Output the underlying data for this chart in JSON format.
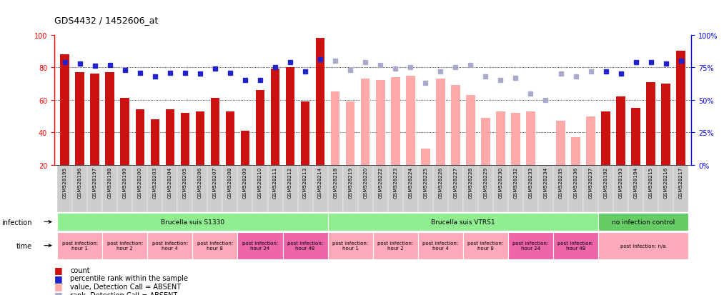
{
  "title": "GDS4432 / 1452606_at",
  "samples": [
    "GSM528195",
    "GSM528196",
    "GSM528197",
    "GSM528198",
    "GSM528199",
    "GSM528200",
    "GSM528203",
    "GSM528204",
    "GSM528205",
    "GSM528206",
    "GSM528207",
    "GSM528208",
    "GSM528209",
    "GSM528210",
    "GSM528211",
    "GSM528212",
    "GSM528213",
    "GSM528214",
    "GSM528218",
    "GSM528219",
    "GSM528220",
    "GSM528222",
    "GSM528223",
    "GSM528224",
    "GSM528225",
    "GSM528226",
    "GSM528227",
    "GSM528228",
    "GSM528229",
    "GSM528230",
    "GSM528232",
    "GSM528233",
    "GSM528234",
    "GSM528235",
    "GSM528236",
    "GSM528237",
    "GSM528192",
    "GSM528193",
    "GSM528194",
    "GSM528215",
    "GSM528216",
    "GSM528217"
  ],
  "bar_values": [
    88,
    77,
    76,
    77,
    61,
    54,
    48,
    54,
    52,
    53,
    61,
    53,
    41,
    66,
    79,
    80,
    59,
    98,
    65,
    59,
    73,
    72,
    74,
    75,
    30,
    73,
    69,
    63,
    49,
    53,
    52,
    53,
    20,
    47,
    37,
    50,
    53,
    62,
    55,
    71,
    70,
    90
  ],
  "bar_absent": [
    false,
    false,
    false,
    false,
    false,
    false,
    false,
    false,
    false,
    false,
    false,
    false,
    false,
    false,
    false,
    false,
    false,
    false,
    true,
    true,
    true,
    true,
    true,
    true,
    true,
    true,
    true,
    true,
    true,
    true,
    true,
    true,
    true,
    true,
    true,
    true,
    false,
    false,
    false,
    false,
    false,
    false
  ],
  "rank_values": [
    79,
    78,
    76,
    77,
    73,
    71,
    68,
    71,
    71,
    70,
    74,
    71,
    65,
    65,
    75,
    79,
    72,
    81,
    80,
    73,
    79,
    77,
    74,
    75,
    63,
    72,
    75,
    77,
    68,
    65,
    67,
    55,
    50,
    70,
    68,
    72,
    72,
    70,
    79,
    79,
    78,
    80
  ],
  "rank_absent": [
    false,
    false,
    false,
    false,
    false,
    false,
    false,
    false,
    false,
    false,
    false,
    false,
    false,
    false,
    false,
    false,
    false,
    false,
    true,
    true,
    true,
    true,
    true,
    true,
    true,
    true,
    true,
    true,
    true,
    true,
    true,
    true,
    true,
    true,
    true,
    true,
    false,
    false,
    false,
    false,
    false,
    false
  ],
  "infection_groups": [
    {
      "label": "Brucella suis S1330",
      "start": 0,
      "end": 18,
      "color": "#90ee90"
    },
    {
      "label": "Brucella suis VTRS1",
      "start": 18,
      "end": 36,
      "color": "#90ee90"
    },
    {
      "label": "no infection control",
      "start": 36,
      "end": 42,
      "color": "#66cc66"
    }
  ],
  "time_groups": [
    {
      "label": "post infection:\nhour 1",
      "start": 0,
      "end": 3,
      "color": "#ffaabb"
    },
    {
      "label": "post infection:\nhour 2",
      "start": 3,
      "end": 6,
      "color": "#ffaabb"
    },
    {
      "label": "post infection:\nhour 4",
      "start": 6,
      "end": 9,
      "color": "#ffaabb"
    },
    {
      "label": "post infection:\nhour 8",
      "start": 9,
      "end": 12,
      "color": "#ffaabb"
    },
    {
      "label": "post infection:\nhour 24",
      "start": 12,
      "end": 15,
      "color": "#ee66aa"
    },
    {
      "label": "post infection:\nhour 48",
      "start": 15,
      "end": 18,
      "color": "#ee66aa"
    },
    {
      "label": "post infection:\nhour 1",
      "start": 18,
      "end": 21,
      "color": "#ffaabb"
    },
    {
      "label": "post infection:\nhour 2",
      "start": 21,
      "end": 24,
      "color": "#ffaabb"
    },
    {
      "label": "post infection:\nhour 4",
      "start": 24,
      "end": 27,
      "color": "#ffaabb"
    },
    {
      "label": "post infection:\nhour 8",
      "start": 27,
      "end": 30,
      "color": "#ffaabb"
    },
    {
      "label": "post infection:\nhour 24",
      "start": 30,
      "end": 33,
      "color": "#ee66aa"
    },
    {
      "label": "post infection:\nhour 48",
      "start": 33,
      "end": 36,
      "color": "#ee66aa"
    },
    {
      "label": "post infection: n/a",
      "start": 36,
      "end": 42,
      "color": "#ffaabb"
    }
  ],
  "ylim_left": [
    20,
    100
  ],
  "ylim_right": [
    0,
    100
  ],
  "yticks_left": [
    20,
    40,
    60,
    80,
    100
  ],
  "yticks_right": [
    0,
    25,
    50,
    75,
    100
  ],
  "ytick_labels_right": [
    "0%",
    "25%",
    "50%",
    "75%",
    "100%"
  ],
  "grid_values": [
    40,
    60,
    80
  ],
  "bar_color_present": "#cc1111",
  "bar_color_absent": "#ffaaaa",
  "rank_color_present": "#2222cc",
  "rank_color_absent": "#aaaacc",
  "bg_color": "#ffffff",
  "tick_bg_color": "#cccccc",
  "legend": [
    {
      "label": "count",
      "color": "#cc1111"
    },
    {
      "label": "percentile rank within the sample",
      "color": "#2222cc"
    },
    {
      "label": "value, Detection Call = ABSENT",
      "color": "#ffaaaa"
    },
    {
      "label": "rank, Detection Call = ABSENT",
      "color": "#aaaacc"
    }
  ]
}
